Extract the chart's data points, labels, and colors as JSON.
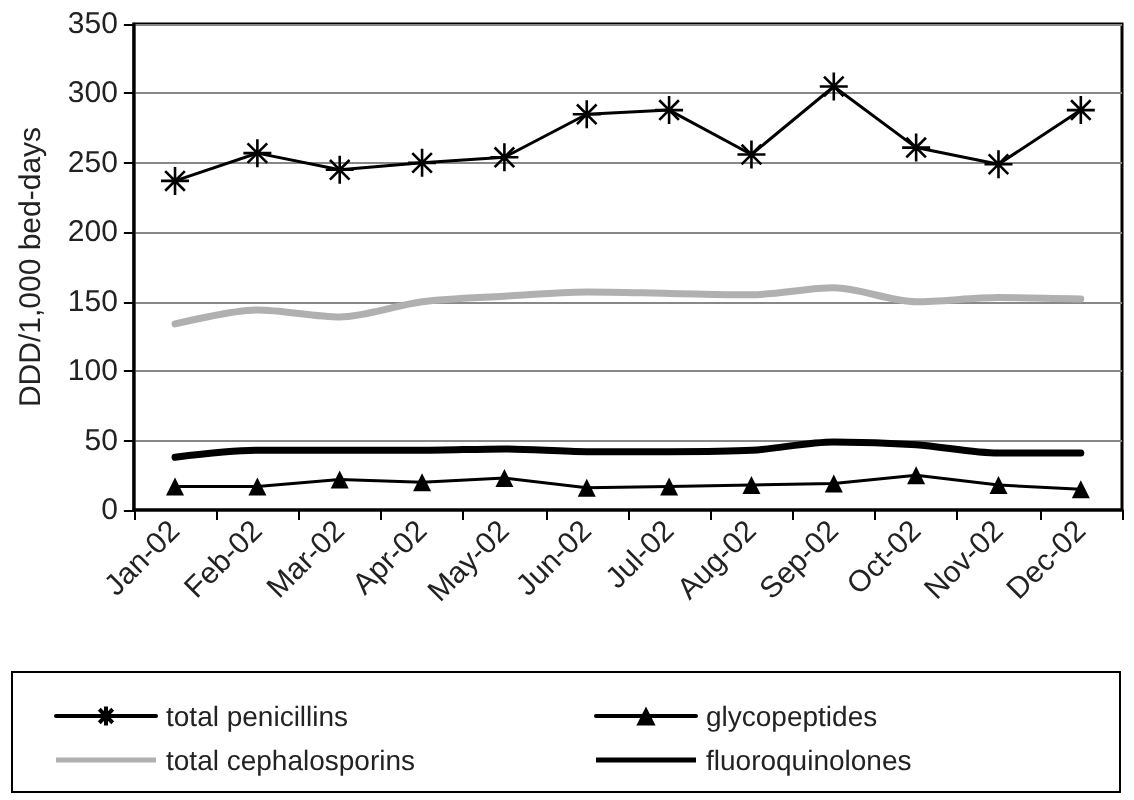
{
  "chart_data": {
    "type": "line",
    "ylabel": "DDD/1,000 bed-days",
    "categories": [
      "Jan-02",
      "Feb-02",
      "Mar-02",
      "Apr-02",
      "May-02",
      "Jun-02",
      "Jul-02",
      "Aug-02",
      "Sep-02",
      "Oct-02",
      "Nov-02",
      "Dec-02"
    ],
    "series": [
      {
        "name": "total penicillins",
        "color": "#000000",
        "marker": "cross",
        "values": [
          237,
          257,
          245,
          250,
          254,
          285,
          288,
          256,
          305,
          261,
          249,
          288
        ]
      },
      {
        "name": "total cephalosporins",
        "color": "#b0b0b0",
        "marker": "none",
        "values": [
          134,
          144,
          139,
          150,
          154,
          157,
          156,
          155,
          160,
          150,
          153,
          152
        ]
      },
      {
        "name": "glycopeptides",
        "color": "#000000",
        "marker": "triangle",
        "values": [
          17,
          17,
          22,
          20,
          23,
          16,
          17,
          18,
          19,
          25,
          18,
          15
        ]
      },
      {
        "name": "fluoroquinolones",
        "color": "#000000",
        "marker": "none",
        "values": [
          38,
          43,
          43,
          43,
          44,
          42,
          42,
          43,
          49,
          47,
          41,
          41
        ]
      }
    ],
    "ylim": [
      0,
      350
    ],
    "yticks": [
      0,
      50,
      100,
      150,
      200,
      250,
      300,
      350
    ],
    "grid": "y",
    "legend": "bottom"
  }
}
